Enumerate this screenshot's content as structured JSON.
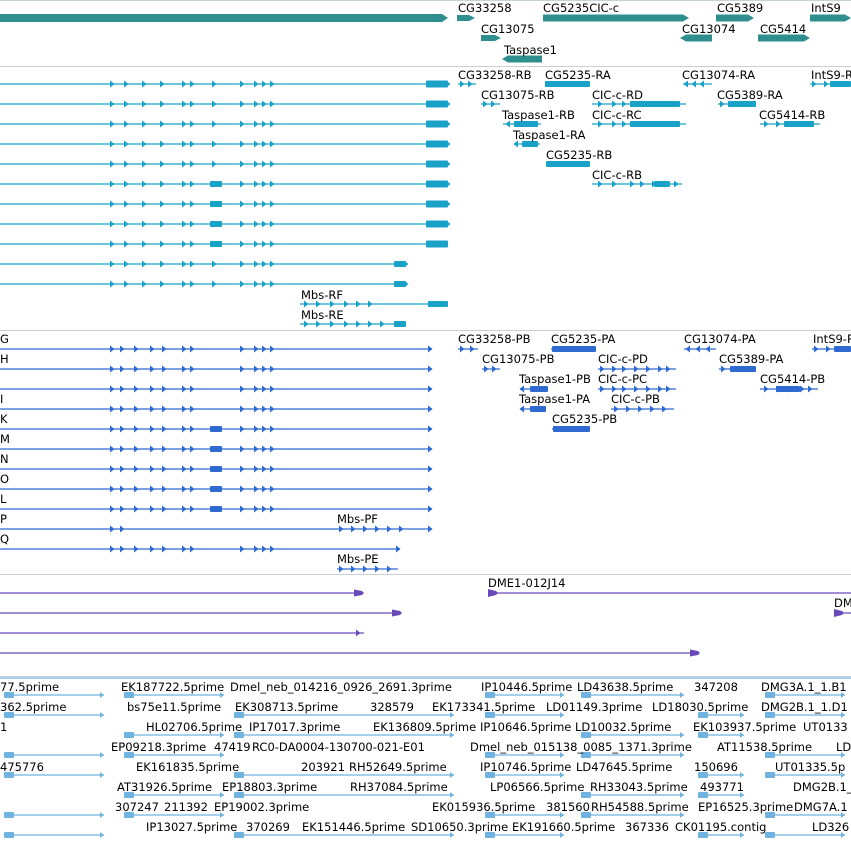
{
  "colors": {
    "gene": "#2f8f8f",
    "transcript": "#19a2c8",
    "protein": "#2f6ad2",
    "clone": "#6a4ab8",
    "est": "#70b2e0",
    "separator": "#c8d0d8"
  },
  "tracks": {
    "gene": {
      "labels": [
        "CG33258",
        "CG5235CIC-c",
        "CG5389",
        "IntS9",
        "CG13075",
        "CG13074",
        "CG5414",
        "Taspase1"
      ]
    },
    "transcript": {
      "labels": [
        "CG33258-RB",
        "CG5235-RA",
        "CG13074-RA",
        "IntS9-R",
        "CG13075-RB",
        "CIC-c-RD",
        "CG5389-RA",
        "Taspase1-RB",
        "CIC-c-RC",
        "CG5414-RB",
        "Taspase1-RA",
        "CG5235-RB",
        "CIC-c-RB",
        "Mbs-RF",
        "Mbs-RE"
      ]
    },
    "protein": {
      "row_letters": [
        "G",
        "H",
        "I",
        "K",
        "M",
        "N",
        "O",
        "L",
        "P",
        "Q"
      ],
      "labels": [
        "CG33258-PB",
        "CG5235-PA",
        "CG13074-PA",
        "IntS9-P",
        "CG13075-PB",
        "CIC-c-PD",
        "CG5389-PA",
        "Taspase1-PB",
        "CIC-c-PC",
        "CG5414-PB",
        "Taspase1-PA",
        "CIC-c-PB",
        "CG5235-PB",
        "Mbs-PF",
        "Mbs-PE"
      ]
    },
    "clone": {
      "labels": [
        "DME1-012J14",
        "DM"
      ]
    },
    "est": {
      "labels": [
        "77.5prime",
        "EK187722.5prime",
        "Dmel_neb_014216_0926_2691.3prime",
        "IP10446.5prime",
        "LD43638.5prime",
        "347208",
        "DMG3A.1_1.B1",
        "362.5prime",
        "bs75e11.5prime",
        "EK308713.5prime",
        "328579",
        "EK173341.5prime",
        "LD01149.3prime",
        "LD18030.5prime",
        "DMG2B.1_1.D1",
        "1",
        "HL02706.5prime",
        "IP17017.3prime",
        "EK136809.5prime",
        "IP10646.5prime",
        "LD10032.5prime",
        "EK103937.5prime",
        "UT0133",
        "EP09218.3prime",
        "47419",
        "RC0-DA0004-130700-021-E01",
        "Dmel_neb_015138_0085_1371.3prime",
        "LD",
        "475776",
        "EK161835.5prime",
        "203921",
        "AT11538.5prime",
        "RH52649.5prime",
        "IP10746.5prime",
        "LD47645.5prime",
        "150696",
        "UT01335.5p",
        "AT31926.5prime",
        "EP18803.3prime",
        "RH37084.5prime",
        "LP06566.5prime",
        "RH33043.5prime",
        "493771",
        "DMG2B.1_1",
        "307247",
        "211392",
        "EP19002.3prime",
        "EK015936.5prime",
        "381560",
        "RH54588.5prime",
        "EP16525.3prime",
        "DMG7A.1",
        "IP13027.5prime",
        "370269",
        "EK151446.5prime",
        "SD10650.3prime",
        "EK191660.5prime",
        "367336",
        "CK01195.contig",
        "LD326"
      ]
    }
  }
}
